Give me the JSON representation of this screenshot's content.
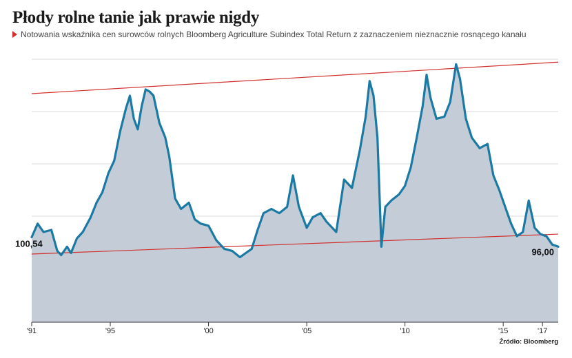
{
  "header": {
    "title": "Płody rolne tanie jak prawie nigdy",
    "subtitle": "Notowania wskaźnika cen surowców rolnych Bloomberg Agriculture Subindex Total Return z zaznaczeniem nieznacznie rosnącego kanału"
  },
  "source": "Źródło: Bloomberg",
  "colors": {
    "line": "#1a7aa3",
    "area": "#c4ccd8",
    "channel": "#d0312d",
    "grid": "#d9d9d9"
  },
  "chart_data": {
    "type": "area",
    "x_tick_labels": [
      "'91",
      "'95",
      "'00",
      "'05",
      "'10",
      "'15",
      "'17"
    ],
    "x_tick_years": [
      1991,
      1995,
      2000,
      2005,
      2010,
      2015,
      2017
    ],
    "xlim": [
      1991.0,
      2017.8
    ],
    "start_label": "100,54",
    "end_label": "96,00",
    "gridlines": true,
    "series": [
      {
        "x": [
          1991.0,
          1991.3,
          1991.6,
          1992.0,
          1992.3,
          1992.5,
          1992.8,
          1993.0,
          1993.3,
          1993.6,
          1994.0,
          1994.3,
          1994.6,
          1994.9,
          1995.2,
          1995.5,
          1995.8,
          1996.0,
          1996.2,
          1996.4,
          1996.6,
          1996.8,
          1997.0,
          1997.2,
          1997.5,
          1997.8,
          1998.0,
          1998.3,
          1998.6,
          1999.0,
          1999.3,
          1999.6,
          2000.0,
          2000.4,
          2000.8,
          2001.2,
          2001.6,
          2001.9,
          2002.2,
          2002.5,
          2002.8,
          2003.2,
          2003.6,
          2004.0,
          2004.3,
          2004.6,
          2005.0,
          2005.3,
          2005.7,
          2006.0,
          2006.5,
          2006.9,
          2007.3,
          2007.7,
          2008.0,
          2008.2,
          2008.4,
          2008.6,
          2008.8,
          2009.0,
          2009.3,
          2009.7,
          2010.0,
          2010.3,
          2010.6,
          2010.9,
          2011.1,
          2011.3,
          2011.6,
          2012.0,
          2012.3,
          2012.6,
          2012.8,
          2013.1,
          2013.4,
          2013.8,
          2014.2,
          2014.5,
          2014.8,
          2015.1,
          2015.4,
          2015.7,
          2016.0,
          2016.3,
          2016.6,
          2016.9,
          2017.2,
          2017.5,
          2017.8
        ],
        "y": [
          100.54,
          107.0,
          103.0,
          104.0,
          94.0,
          92.0,
          96.0,
          93.0,
          100.0,
          103.0,
          110.0,
          117.0,
          122.0,
          131.0,
          137.0,
          151.0,
          162.0,
          168.0,
          157.0,
          152.0,
          163.0,
          171.0,
          170.0,
          168.0,
          155.0,
          148.0,
          139.0,
          119.0,
          114.0,
          117.0,
          109.0,
          107.0,
          106.0,
          99.0,
          95.0,
          94.0,
          91.0,
          93.0,
          95.0,
          104.0,
          112.0,
          114.0,
          112.0,
          115.0,
          130.0,
          115.0,
          105.0,
          110.0,
          112.0,
          108.0,
          103.0,
          128.0,
          124.0,
          142.0,
          158.0,
          175.0,
          168.0,
          148.0,
          96.0,
          115.0,
          118.0,
          121.0,
          125.0,
          134.0,
          148.0,
          163.0,
          178.0,
          167.0,
          157.0,
          158.0,
          165.0,
          183.0,
          176.0,
          157.0,
          148.0,
          143.0,
          145.0,
          130.0,
          123.0,
          115.0,
          107.0,
          101.0,
          103.0,
          118.0,
          105.0,
          102.0,
          101.0,
          97.0,
          96.0
        ]
      }
    ],
    "channel_lines": [
      {
        "x": [
          1991.0,
          2017.8
        ],
        "y": [
          92.5,
          102.0
        ]
      },
      {
        "x": [
          1991.0,
          2017.8
        ],
        "y": [
          169.0,
          184.0
        ]
      }
    ]
  }
}
